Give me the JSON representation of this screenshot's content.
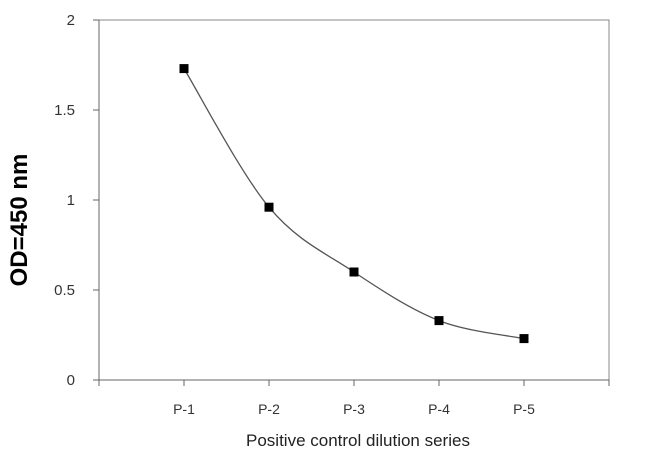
{
  "chart_data": {
    "type": "line",
    "categories": [
      "P-1",
      "P-2",
      "P-3",
      "P-4",
      "P-5"
    ],
    "series": [
      {
        "values": [
          1.73,
          0.96,
          0.6,
          0.33,
          0.23
        ],
        "color": "#555555",
        "marker": "square",
        "marker_color": "#000000",
        "smooth": true
      }
    ],
    "xlabel": "Positive control dilution series",
    "ylabel": "OD=450 nm",
    "ylim": [
      0,
      2
    ],
    "yticks": [
      0,
      0.5,
      1,
      1.5,
      2
    ],
    "ytick_labels": [
      "0",
      "0.5",
      "1",
      "1.5",
      "2"
    ],
    "grid": false,
    "legend": "none"
  }
}
